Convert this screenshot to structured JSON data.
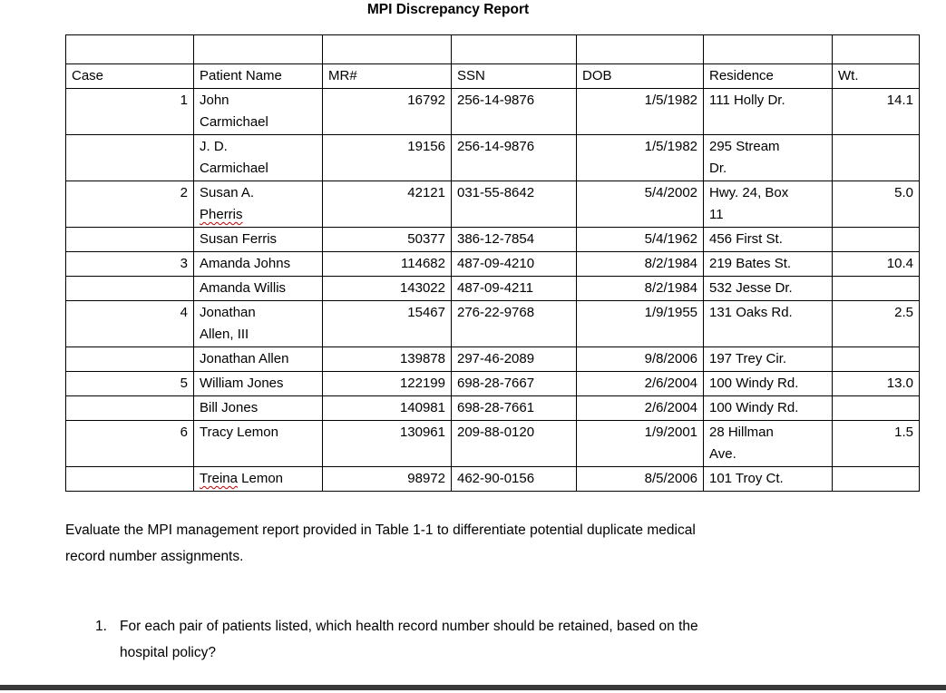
{
  "page": {
    "title": "MPI Discrepancy Report",
    "paragraph": "Evaluate the MPI management report provided in Table 1-1 to differentiate potential duplicate medical\nrecord number assignments.",
    "question_number": "1.",
    "question_text": "For each pair of patients listed, which health record number should be retained, based on the\nhospital policy?"
  },
  "table": {
    "columns": [
      "Case",
      "Patient Name",
      "MR#",
      "SSN",
      "DOB",
      "Residence",
      "Wt."
    ],
    "rows": [
      {
        "case": "1",
        "name": "John\nCarmichael",
        "mr": "16792",
        "ssn": "256-14-9876",
        "dob": "1/5/1982",
        "residence": "111 Holly Dr.",
        "wt": "14.1"
      },
      {
        "case": "",
        "name": "J. D.\nCarmichael",
        "mr": "19156",
        "ssn": "256-14-9876",
        "dob": "1/5/1982",
        "residence": "295 Stream\nDr.",
        "wt": ""
      },
      {
        "case": "2",
        "name": "Susan A.\nPherris",
        "misspelled": "Pherris",
        "mr": "42121",
        "ssn": "031-55-8642",
        "dob": "5/4/2002",
        "residence": "Hwy. 24, Box\n11",
        "wt": "5.0"
      },
      {
        "case": "",
        "name": "Susan Ferris",
        "mr": "50377",
        "ssn": "386-12-7854",
        "dob": "5/4/1962",
        "residence": "456 First St.",
        "wt": ""
      },
      {
        "case": "3",
        "name": "Amanda Johns",
        "mr": "114682",
        "ssn": "487-09-4210",
        "dob": "8/2/1984",
        "residence": "219 Bates St.",
        "wt": "10.4"
      },
      {
        "case": "",
        "name": "Amanda Willis",
        "mr": "143022",
        "ssn": "487-09-4211",
        "dob": "8/2/1984",
        "residence": "532 Jesse Dr.",
        "wt": ""
      },
      {
        "case": "4",
        "name": "Jonathan\nAllen, III",
        "mr": "15467",
        "ssn": "276-22-9768",
        "dob": "1/9/1955",
        "residence": "131 Oaks Rd.",
        "wt": "2.5"
      },
      {
        "case": "",
        "name": "Jonathan Allen",
        "mr": "139878",
        "ssn": "297-46-2089",
        "dob": "9/8/2006",
        "residence": "197 Trey Cir.",
        "wt": ""
      },
      {
        "case": "5",
        "name": "William Jones",
        "mr": "122199",
        "ssn": "698-28-7667",
        "dob": "2/6/2004",
        "residence": "100 Windy Rd.",
        "wt": "13.0"
      },
      {
        "case": "",
        "name": "Bill Jones",
        "mr": "140981",
        "ssn": "698-28-7661",
        "dob": "2/6/2004",
        "residence": "100 Windy Rd.",
        "wt": ""
      },
      {
        "case": "6",
        "name": "Tracy Lemon",
        "mr": "130961",
        "ssn": "209-88-0120",
        "dob": "1/9/2001",
        "residence": "28 Hillman\nAve.",
        "wt": "1.5"
      },
      {
        "case": "",
        "name": "Treina Lemon",
        "misspelled": "Treina",
        "mr": "98972",
        "ssn": "462-90-0156",
        "dob": "8/5/2006",
        "residence": "101 Troy Ct.",
        "wt": ""
      }
    ]
  },
  "colors": {
    "text": "#000000",
    "background": "#FFFFFF",
    "spellcheck_squiggle": "#C00000",
    "bottom_bar": "#3A3A3A"
  }
}
